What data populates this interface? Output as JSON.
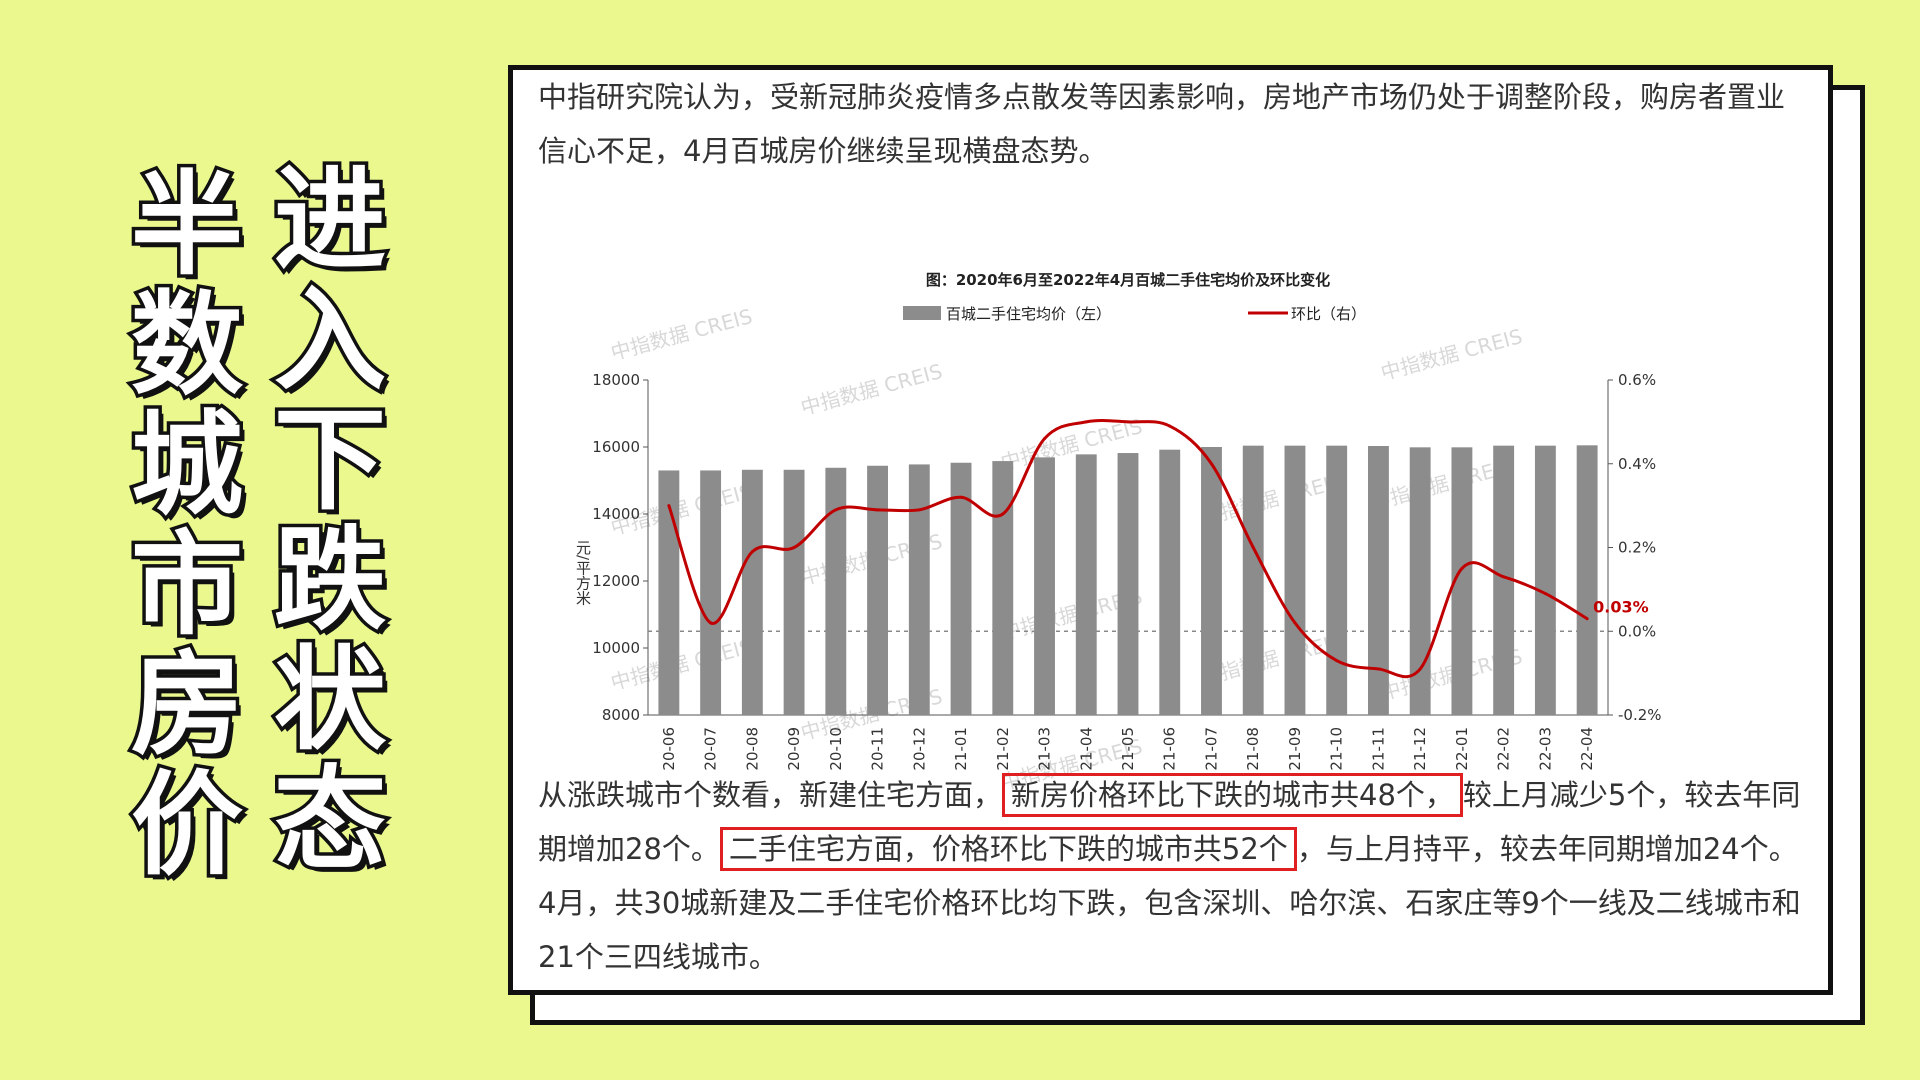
{
  "headline": {
    "col1": "半数城市房价",
    "col2": "进入下跌状态"
  },
  "intro_text": "中指研究院认为，受新冠肺炎疫情多点散发等因素影响，房地产市场仍处于调整阶段，购房者置业信心不足，4月百城房价继续呈现横盘态势。",
  "body_text": {
    "p1": "从涨跌城市个数看，新建住宅方面，",
    "hl1": "新房价格环比下跌的城市共48个，",
    "p2": "较上月减少5个，较去年同期增加28个。",
    "hl2": "二手住宅方面，价格环比下跌的城市共52个",
    "p3": "，与上月持平，较去年同期增加24个。4月，共30城新建及二手住宅价格环比均下跌，包含深圳、哈尔滨、石家庄等9个一线及二线城市和21个三四线城市。"
  },
  "colors": {
    "background": "#eaf88e",
    "bar": "#8c8c8c",
    "line": "#c00000",
    "highlight_box": "#e02020"
  },
  "chart_data": {
    "type": "bar",
    "title": "图：2020年6月至2022年4月百城二手住宅均价及环比变化",
    "ylabel": "元/平方米",
    "categories": [
      "20-06",
      "20-07",
      "20-08",
      "20-09",
      "20-10",
      "20-11",
      "20-12",
      "21-01",
      "21-02",
      "21-03",
      "21-04",
      "21-05",
      "21-06",
      "21-07",
      "21-08",
      "21-09",
      "21-10",
      "21-11",
      "21-12",
      "22-01",
      "22-02",
      "22-03",
      "22-04"
    ],
    "series": [
      {
        "name": "百城二手住宅均价（左）",
        "axis": "left",
        "type": "bar",
        "values": [
          15300,
          15300,
          15320,
          15320,
          15380,
          15440,
          15480,
          15530,
          15580,
          15690,
          15780,
          15820,
          15920,
          16000,
          16040,
          16040,
          16040,
          16030,
          15990,
          15990,
          16040,
          16040,
          16050
        ]
      },
      {
        "name": "环比（右）",
        "axis": "right",
        "type": "line",
        "values": [
          0.3,
          0.02,
          0.19,
          0.2,
          0.29,
          0.29,
          0.29,
          0.32,
          0.28,
          0.46,
          0.5,
          0.5,
          0.49,
          0.4,
          0.2,
          0.02,
          -0.07,
          -0.09,
          -0.09,
          0.15,
          0.13,
          0.09,
          0.03
        ]
      }
    ],
    "ylim": [
      8000,
      18000
    ],
    "yticks": [
      "8000",
      "10000",
      "12000",
      "14000",
      "16000",
      "18000"
    ],
    "y2lim": [
      -0.2,
      0.6
    ],
    "y2ticks": [
      "-0.2%",
      "0.0%",
      "0.2%",
      "0.4%",
      "0.6%"
    ],
    "last_label": "0.03%",
    "watermark": "中指数据 CREIS",
    "legend_position": "top"
  }
}
